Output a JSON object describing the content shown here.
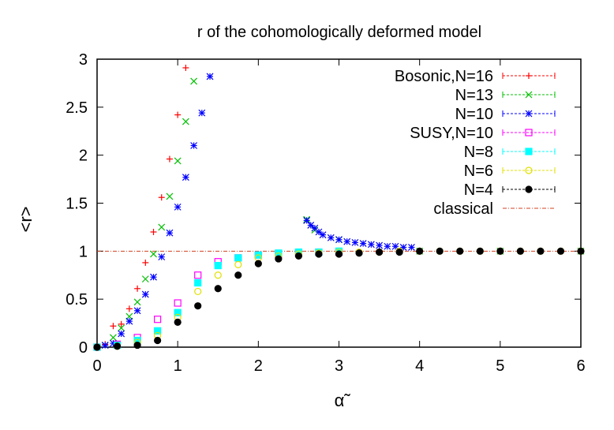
{
  "chart_data": {
    "type": "scatter",
    "title": "r of the cohomologically deformed model",
    "xlabel": "α̃",
    "ylabel": "<r>",
    "xlim": [
      0,
      6
    ],
    "ylim": [
      0,
      3
    ],
    "xticks": [
      "0",
      "1",
      "2",
      "3",
      "4",
      "5",
      "6"
    ],
    "yticks": [
      "0",
      "0.5",
      "1",
      "1.5",
      "2",
      "2.5",
      "3"
    ],
    "legend_position": "top-right",
    "series": [
      {
        "name": "Bosonic,N=16",
        "color": "#ff0000",
        "marker": "plus",
        "points": [
          [
            0.0,
            0.0
          ],
          [
            0.1,
            0.03
          ],
          [
            0.2,
            0.22
          ],
          [
            0.3,
            0.24
          ],
          [
            0.4,
            0.4
          ],
          [
            0.5,
            0.61
          ],
          [
            0.6,
            0.88
          ],
          [
            0.7,
            1.2
          ],
          [
            0.8,
            1.56
          ],
          [
            0.9,
            1.96
          ],
          [
            1.0,
            2.42
          ],
          [
            1.1,
            2.91
          ]
        ]
      },
      {
        "name": "N=13",
        "color": "#00c000",
        "marker": "x",
        "points": [
          [
            0.0,
            0.0
          ],
          [
            0.1,
            0.02
          ],
          [
            0.2,
            0.1
          ],
          [
            0.3,
            0.2
          ],
          [
            0.4,
            0.32
          ],
          [
            0.5,
            0.47
          ],
          [
            0.6,
            0.71
          ],
          [
            0.7,
            0.97
          ],
          [
            0.8,
            1.25
          ],
          [
            0.9,
            1.57
          ],
          [
            1.0,
            1.94
          ],
          [
            1.1,
            2.35
          ],
          [
            1.2,
            2.77
          ],
          [
            2.6,
            1.33
          ],
          [
            2.7,
            1.22
          ],
          [
            3.0,
            1.12
          ],
          [
            4.0,
            1.0
          ],
          [
            5.0,
            1.0
          ],
          [
            6.0,
            1.0
          ]
        ]
      },
      {
        "name": "N=10",
        "color": "#0000ff",
        "marker": "star",
        "points": [
          [
            0.0,
            0.0
          ],
          [
            0.1,
            0.02
          ],
          [
            0.2,
            0.04
          ],
          [
            0.3,
            0.14
          ],
          [
            0.4,
            0.27
          ],
          [
            0.5,
            0.38
          ],
          [
            0.6,
            0.55
          ],
          [
            0.7,
            0.73
          ],
          [
            0.8,
            0.94
          ],
          [
            0.9,
            1.19
          ],
          [
            1.0,
            1.46
          ],
          [
            1.1,
            1.77
          ],
          [
            1.2,
            2.1
          ],
          [
            1.3,
            2.44
          ],
          [
            1.4,
            2.82
          ],
          [
            2.6,
            1.32
          ],
          [
            2.65,
            1.27
          ],
          [
            2.7,
            1.24
          ],
          [
            2.75,
            1.2
          ],
          [
            2.8,
            1.17
          ],
          [
            2.9,
            1.14
          ],
          [
            3.0,
            1.12
          ],
          [
            3.1,
            1.1
          ],
          [
            3.2,
            1.09
          ],
          [
            3.3,
            1.08
          ],
          [
            3.4,
            1.07
          ],
          [
            3.5,
            1.06
          ],
          [
            3.6,
            1.05
          ],
          [
            3.7,
            1.05
          ],
          [
            3.8,
            1.04
          ],
          [
            3.9,
            1.04
          ]
        ]
      },
      {
        "name": "SUSY,N=10",
        "color": "#ff00ff",
        "marker": "box-open",
        "points": [
          [
            0.0,
            0.0
          ],
          [
            0.25,
            0.03
          ],
          [
            0.5,
            0.1
          ],
          [
            0.75,
            0.29
          ],
          [
            1.0,
            0.46
          ],
          [
            1.25,
            0.75
          ],
          [
            1.5,
            0.89
          ],
          [
            1.75,
            0.93
          ],
          [
            2.0,
            0.96
          ],
          [
            2.25,
            0.97
          ],
          [
            2.5,
            0.98
          ],
          [
            2.75,
            0.99
          ],
          [
            3.0,
            0.99
          ]
        ]
      },
      {
        "name": "N=8",
        "color": "#00ffff",
        "marker": "box-filled",
        "points": [
          [
            0.0,
            0.0
          ],
          [
            0.25,
            0.02
          ],
          [
            0.5,
            0.07
          ],
          [
            0.75,
            0.17
          ],
          [
            1.0,
            0.36
          ],
          [
            1.25,
            0.67
          ],
          [
            1.5,
            0.85
          ],
          [
            1.75,
            0.93
          ],
          [
            2.0,
            0.96
          ],
          [
            2.25,
            0.98
          ],
          [
            2.5,
            0.99
          ],
          [
            2.75,
            0.99
          ],
          [
            3.0,
            1.0
          ]
        ]
      },
      {
        "name": "N=6",
        "color": "#e0e000",
        "marker": "circle-open",
        "points": [
          [
            0.0,
            0.0
          ],
          [
            0.25,
            0.01
          ],
          [
            0.5,
            0.05
          ],
          [
            0.75,
            0.12
          ],
          [
            1.0,
            0.31
          ],
          [
            1.25,
            0.58
          ],
          [
            1.5,
            0.75
          ],
          [
            1.75,
            0.86
          ],
          [
            2.0,
            0.93
          ],
          [
            2.25,
            0.95
          ],
          [
            2.5,
            0.97
          ],
          [
            2.75,
            0.98
          ],
          [
            3.0,
            0.99
          ],
          [
            3.25,
            0.99
          ],
          [
            3.5,
            0.99
          ],
          [
            3.75,
            1.0
          ],
          [
            4.0,
            1.0
          ],
          [
            4.25,
            1.0
          ],
          [
            4.5,
            1.0
          ],
          [
            4.75,
            1.0
          ],
          [
            5.0,
            1.0
          ],
          [
            5.25,
            1.0
          ],
          [
            5.5,
            1.0
          ],
          [
            5.75,
            1.0
          ],
          [
            6.0,
            1.0
          ]
        ]
      },
      {
        "name": "N=4",
        "color": "#000000",
        "marker": "circle-filled",
        "points": [
          [
            0.0,
            0.0
          ],
          [
            0.25,
            0.01
          ],
          [
            0.5,
            0.02
          ],
          [
            0.75,
            0.07
          ],
          [
            1.0,
            0.26
          ],
          [
            1.25,
            0.43
          ],
          [
            1.5,
            0.61
          ],
          [
            1.75,
            0.75
          ],
          [
            2.0,
            0.87
          ],
          [
            2.25,
            0.92
          ],
          [
            2.5,
            0.95
          ],
          [
            2.75,
            0.97
          ],
          [
            3.0,
            0.97
          ],
          [
            3.25,
            0.98
          ],
          [
            3.5,
            0.99
          ],
          [
            3.75,
            0.99
          ],
          [
            4.0,
            1.0
          ],
          [
            4.25,
            1.0
          ],
          [
            4.5,
            1.0
          ],
          [
            4.75,
            1.0
          ],
          [
            5.0,
            1.0
          ],
          [
            5.25,
            1.0
          ],
          [
            5.5,
            1.0
          ],
          [
            5.75,
            1.0
          ],
          [
            6.0,
            1.0
          ]
        ]
      },
      {
        "name": "classical",
        "color": "#d04020",
        "marker": "line",
        "line_y": 1.0
      }
    ]
  }
}
